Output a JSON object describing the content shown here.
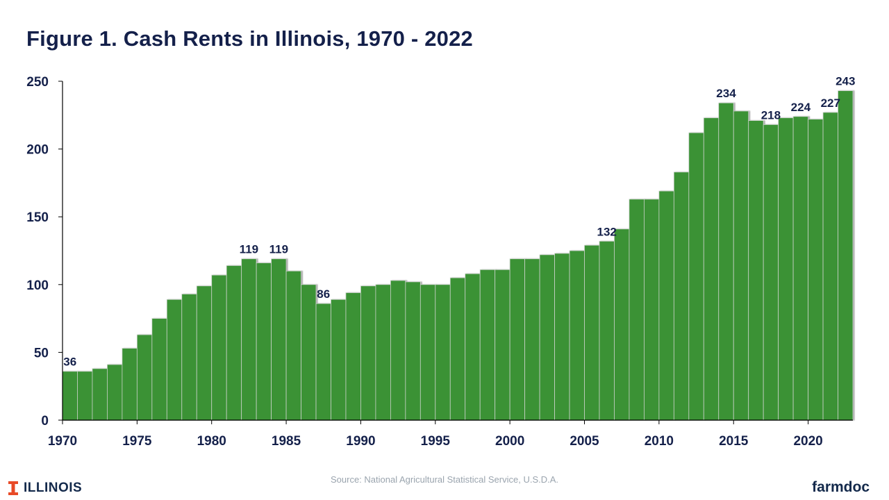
{
  "chart_data": {
    "type": "bar",
    "title": "Figure 1. Cash Rents in Illinois, 1970 - 2022",
    "xlabel": "",
    "ylabel": "",
    "ylim": [
      0,
      250
    ],
    "yticks": [
      0,
      50,
      100,
      150,
      200,
      250
    ],
    "xtick_labels": [
      "1970",
      "1975",
      "1980",
      "1985",
      "1990",
      "1995",
      "2000",
      "2005",
      "2010",
      "2015",
      "2020"
    ],
    "grid": false,
    "legend": "none",
    "bar_color": "#3a9234",
    "categories": [
      1970,
      1971,
      1972,
      1973,
      1974,
      1975,
      1976,
      1977,
      1978,
      1979,
      1980,
      1981,
      1982,
      1983,
      1984,
      1985,
      1986,
      1987,
      1988,
      1989,
      1990,
      1991,
      1992,
      1993,
      1994,
      1995,
      1996,
      1997,
      1998,
      1999,
      2000,
      2001,
      2002,
      2003,
      2004,
      2005,
      2006,
      2007,
      2008,
      2009,
      2010,
      2011,
      2012,
      2013,
      2014,
      2015,
      2016,
      2017,
      2018,
      2019,
      2020,
      2021,
      2022
    ],
    "values": [
      36,
      36,
      38,
      41,
      53,
      63,
      75,
      89,
      93,
      99,
      107,
      114,
      119,
      116,
      119,
      110,
      100,
      86,
      89,
      94,
      99,
      100,
      103,
      102,
      100,
      100,
      105,
      108,
      111,
      111,
      119,
      119,
      122,
      123,
      125,
      129,
      132,
      141,
      163,
      163,
      169,
      183,
      212,
      223,
      234,
      228,
      221,
      218,
      223,
      224,
      222,
      227,
      243
    ],
    "data_labels": [
      {
        "x": 1970,
        "text": "36"
      },
      {
        "x": 1982,
        "text": "119"
      },
      {
        "x": 1984,
        "text": "119"
      },
      {
        "x": 1987,
        "text": "86"
      },
      {
        "x": 2006,
        "text": "132"
      },
      {
        "x": 2014,
        "text": "234"
      },
      {
        "x": 2017,
        "text": "218"
      },
      {
        "x": 2019,
        "text": "224"
      },
      {
        "x": 2021,
        "text": "227"
      },
      {
        "x": 2022,
        "text": "243"
      }
    ]
  },
  "footer": {
    "source": "Source:  National Agricultural Statistical Service, U.S.D.A.",
    "left_logo_text": "ILLINOIS",
    "right_logo_text": "farmdoc"
  },
  "colors": {
    "text": "#14204a",
    "bar": "#3a9234",
    "bar_edge": "#c9d1c9",
    "brand_orange": "#e84a27",
    "brand_navy": "#13294b"
  },
  "icons": {
    "left_logo": "block-i-icon"
  }
}
